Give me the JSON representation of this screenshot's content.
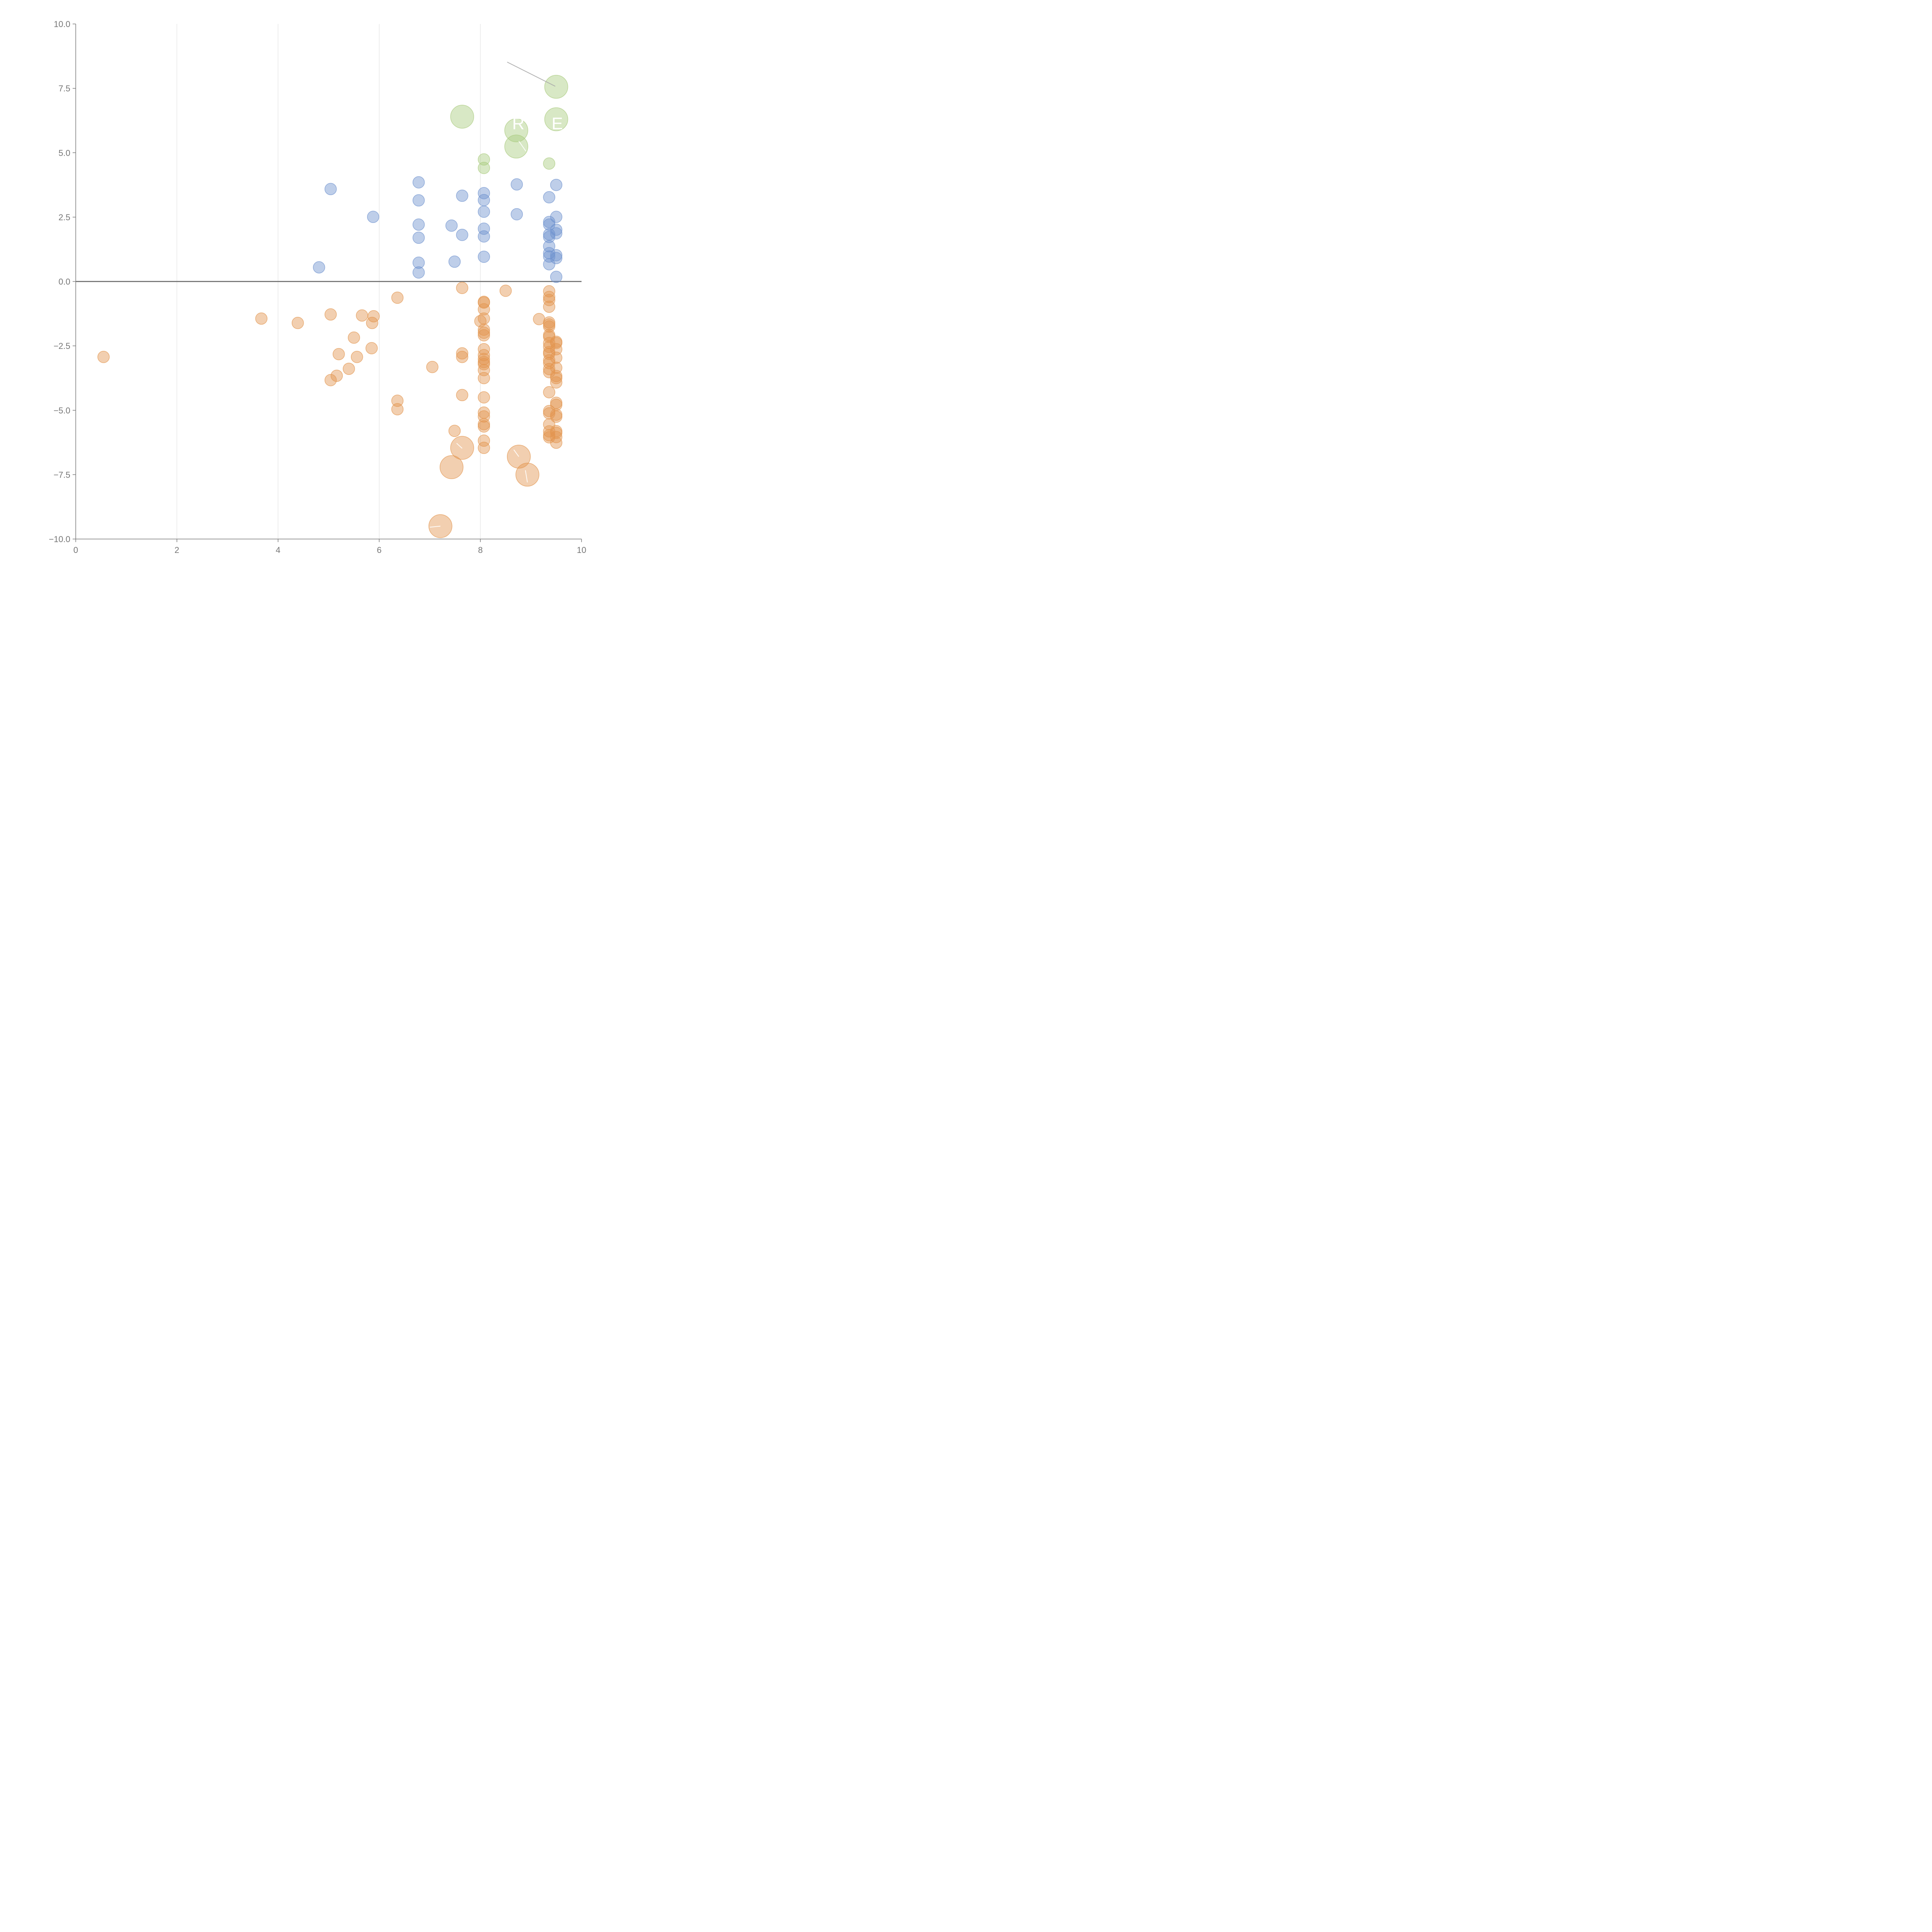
{
  "colors": {
    "positive": "#6f93cf",
    "negative": "#e3954f",
    "highlight": "#a9cb7e",
    "axis": "#7a7a7a",
    "grid": "#dddddd",
    "tick_text": "#777777"
  },
  "chart_data": {
    "type": "scatter",
    "title": "",
    "xlabel": "",
    "ylabel": "",
    "xlim": [
      0,
      10
    ],
    "ylim": [
      -10,
      10
    ],
    "xticks": [
      "0",
      "2",
      "4",
      "6",
      "8",
      "10"
    ],
    "yticks": [
      "10.0",
      "7.5",
      "5.0",
      "2.5",
      "0.0",
      "−2.5",
      "−5.0",
      "−7.5",
      "−10.0"
    ],
    "grid": "vertical",
    "legend": "none",
    "series": [
      {
        "color_key": "positive",
        "points": [
          {
            "x": 4.81,
            "y": 0.55
          },
          {
            "x": 5.04,
            "y": 3.59
          },
          {
            "x": 5.88,
            "y": 2.51
          },
          {
            "x": 6.78,
            "y": 3.85
          },
          {
            "x": 6.78,
            "y": 3.15
          },
          {
            "x": 6.78,
            "y": 2.21
          },
          {
            "x": 6.78,
            "y": 1.7
          },
          {
            "x": 6.78,
            "y": 0.73
          },
          {
            "x": 6.78,
            "y": 0.35
          },
          {
            "x": 7.43,
            "y": 2.17
          },
          {
            "x": 7.49,
            "y": 0.77
          },
          {
            "x": 7.64,
            "y": 3.33
          },
          {
            "x": 7.64,
            "y": 1.81
          },
          {
            "x": 8.07,
            "y": 3.43
          },
          {
            "x": 8.07,
            "y": 3.16
          },
          {
            "x": 8.07,
            "y": 2.71
          },
          {
            "x": 8.07,
            "y": 2.05
          },
          {
            "x": 8.07,
            "y": 1.75
          },
          {
            "x": 8.07,
            "y": 0.96
          },
          {
            "x": 8.72,
            "y": 3.77
          },
          {
            "x": 8.72,
            "y": 2.61
          },
          {
            "x": 9.36,
            "y": 3.27
          },
          {
            "x": 9.36,
            "y": 2.31
          },
          {
            "x": 9.36,
            "y": 2.21
          },
          {
            "x": 9.36,
            "y": 1.83
          },
          {
            "x": 9.36,
            "y": 1.73
          },
          {
            "x": 9.36,
            "y": 1.37
          },
          {
            "x": 9.36,
            "y": 1.1
          },
          {
            "x": 9.36,
            "y": 0.97
          },
          {
            "x": 9.36,
            "y": 0.67
          },
          {
            "x": 9.5,
            "y": 3.75
          },
          {
            "x": 9.5,
            "y": 2.51
          },
          {
            "x": 9.5,
            "y": 2.01
          },
          {
            "x": 9.5,
            "y": 1.87
          },
          {
            "x": 9.5,
            "y": 1.02
          },
          {
            "x": 9.5,
            "y": 0.91
          },
          {
            "x": 9.5,
            "y": 0.18
          }
        ]
      },
      {
        "color_key": "negative",
        "points": [
          {
            "x": 0.55,
            "y": -2.93
          },
          {
            "x": 3.67,
            "y": -1.44
          },
          {
            "x": 4.39,
            "y": -1.61
          },
          {
            "x": 5.04,
            "y": -1.28
          },
          {
            "x": 5.04,
            "y": -3.83
          },
          {
            "x": 5.16,
            "y": -3.66
          },
          {
            "x": 5.2,
            "y": -2.82
          },
          {
            "x": 5.4,
            "y": -3.39
          },
          {
            "x": 5.5,
            "y": -2.18
          },
          {
            "x": 5.56,
            "y": -2.93
          },
          {
            "x": 5.66,
            "y": -1.32
          },
          {
            "x": 5.85,
            "y": -2.59
          },
          {
            "x": 5.86,
            "y": -1.61
          },
          {
            "x": 5.89,
            "y": -1.35
          },
          {
            "x": 6.36,
            "y": -0.63
          },
          {
            "x": 6.36,
            "y": -4.63
          },
          {
            "x": 6.36,
            "y": -4.96
          },
          {
            "x": 7.05,
            "y": -3.32
          },
          {
            "x": 7.49,
            "y": -5.8
          },
          {
            "x": 7.64,
            "y": -0.25
          },
          {
            "x": 7.64,
            "y": -2.79
          },
          {
            "x": 7.64,
            "y": -2.93
          },
          {
            "x": 7.64,
            "y": -4.41
          },
          {
            "x": 8.07,
            "y": -0.79
          },
          {
            "x": 8.07,
            "y": -0.82
          },
          {
            "x": 8.07,
            "y": -1.08
          },
          {
            "x": 8.07,
            "y": -1.44
          },
          {
            "x": 8.0,
            "y": -1.54
          },
          {
            "x": 8.07,
            "y": -1.87
          },
          {
            "x": 8.07,
            "y": -1.99
          },
          {
            "x": 8.07,
            "y": -2.09
          },
          {
            "x": 8.07,
            "y": -2.63
          },
          {
            "x": 8.07,
            "y": -2.86
          },
          {
            "x": 8.07,
            "y": -3.01
          },
          {
            "x": 8.07,
            "y": -3.13
          },
          {
            "x": 8.07,
            "y": -3.21
          },
          {
            "x": 8.07,
            "y": -3.44
          },
          {
            "x": 8.07,
            "y": -3.75
          },
          {
            "x": 8.07,
            "y": -4.5
          },
          {
            "x": 8.07,
            "y": -5.09
          },
          {
            "x": 8.07,
            "y": -5.24
          },
          {
            "x": 8.07,
            "y": -5.54
          },
          {
            "x": 8.07,
            "y": -5.63
          },
          {
            "x": 8.07,
            "y": -6.18
          },
          {
            "x": 8.07,
            "y": -6.46
          },
          {
            "x": 8.5,
            "y": -0.36
          },
          {
            "x": 9.16,
            "y": -1.46
          },
          {
            "x": 9.36,
            "y": -0.38
          },
          {
            "x": 9.36,
            "y": -0.6
          },
          {
            "x": 9.36,
            "y": -0.72
          },
          {
            "x": 9.36,
            "y": -0.98
          },
          {
            "x": 9.36,
            "y": -1.59
          },
          {
            "x": 9.36,
            "y": -1.67
          },
          {
            "x": 9.36,
            "y": -1.75
          },
          {
            "x": 9.36,
            "y": -2.08
          },
          {
            "x": 9.36,
            "y": -2.15
          },
          {
            "x": 9.36,
            "y": -2.39
          },
          {
            "x": 9.36,
            "y": -2.54
          },
          {
            "x": 9.36,
            "y": -2.74
          },
          {
            "x": 9.36,
            "y": -2.81
          },
          {
            "x": 9.36,
            "y": -3.06
          },
          {
            "x": 9.36,
            "y": -3.17
          },
          {
            "x": 9.36,
            "y": -3.4
          },
          {
            "x": 9.36,
            "y": -3.52
          },
          {
            "x": 9.36,
            "y": -4.3
          },
          {
            "x": 9.36,
            "y": -5.03
          },
          {
            "x": 9.36,
            "y": -5.12
          },
          {
            "x": 9.36,
            "y": -5.55
          },
          {
            "x": 9.36,
            "y": -5.82
          },
          {
            "x": 9.36,
            "y": -5.97
          },
          {
            "x": 9.36,
            "y": -6.05
          },
          {
            "x": 9.5,
            "y": -2.34
          },
          {
            "x": 9.5,
            "y": -2.39
          },
          {
            "x": 9.5,
            "y": -2.63
          },
          {
            "x": 9.5,
            "y": -2.96
          },
          {
            "x": 9.5,
            "y": -3.35
          },
          {
            "x": 9.5,
            "y": -3.67
          },
          {
            "x": 9.5,
            "y": -3.75
          },
          {
            "x": 9.5,
            "y": -3.92
          },
          {
            "x": 9.5,
            "y": -4.71
          },
          {
            "x": 9.5,
            "y": -4.79
          },
          {
            "x": 9.5,
            "y": -5.17
          },
          {
            "x": 9.5,
            "y": -5.25
          },
          {
            "x": 9.5,
            "y": -5.81
          },
          {
            "x": 9.5,
            "y": -5.88
          },
          {
            "x": 9.5,
            "y": -6.04
          },
          {
            "x": 9.5,
            "y": -6.26
          }
        ]
      },
      {
        "color_key": "negative",
        "size": "large",
        "points": [
          {
            "x": 7.21,
            "y": -9.5
          },
          {
            "x": 7.43,
            "y": -7.21
          },
          {
            "x": 7.64,
            "y": -6.46
          },
          {
            "x": 8.76,
            "y": -6.8
          },
          {
            "x": 8.93,
            "y": -7.5
          }
        ]
      },
      {
        "color_key": "highlight",
        "points": [
          {
            "x": 8.07,
            "y": 4.74
          },
          {
            "x": 8.07,
            "y": 4.41
          },
          {
            "x": 9.36,
            "y": 4.58
          }
        ]
      },
      {
        "color_key": "highlight",
        "size": "large",
        "points": [
          {
            "x": 7.64,
            "y": 6.4
          },
          {
            "x": 8.71,
            "y": 5.87
          },
          {
            "x": 8.71,
            "y": 5.24
          },
          {
            "x": 9.5,
            "y": 7.56
          },
          {
            "x": 9.5,
            "y": 6.3
          }
        ]
      }
    ],
    "annotations": [
      {
        "text": "R",
        "x": 8.75,
        "y": 6.15,
        "color": "white"
      },
      {
        "text": "E",
        "x": 9.52,
        "y": 6.15,
        "color": "white"
      }
    ],
    "leaders": [
      {
        "x1": 8.53,
        "y1": 8.52,
        "x2": 9.48,
        "y2": 7.58,
        "color": "gray"
      },
      {
        "x1": 8.76,
        "y1": 5.45,
        "x2": 8.9,
        "y2": 5.06,
        "color": "white"
      },
      {
        "x1": 7.64,
        "y1": -6.48,
        "x2": 7.53,
        "y2": -6.28,
        "color": "white"
      },
      {
        "x1": 8.76,
        "y1": -6.8,
        "x2": 8.66,
        "y2": -6.53,
        "color": "white"
      },
      {
        "x1": 8.93,
        "y1": -7.8,
        "x2": 8.89,
        "y2": -7.33,
        "color": "white"
      },
      {
        "x1": 7.21,
        "y1": -9.5,
        "x2": 7.0,
        "y2": -9.54,
        "color": "white"
      }
    ]
  }
}
